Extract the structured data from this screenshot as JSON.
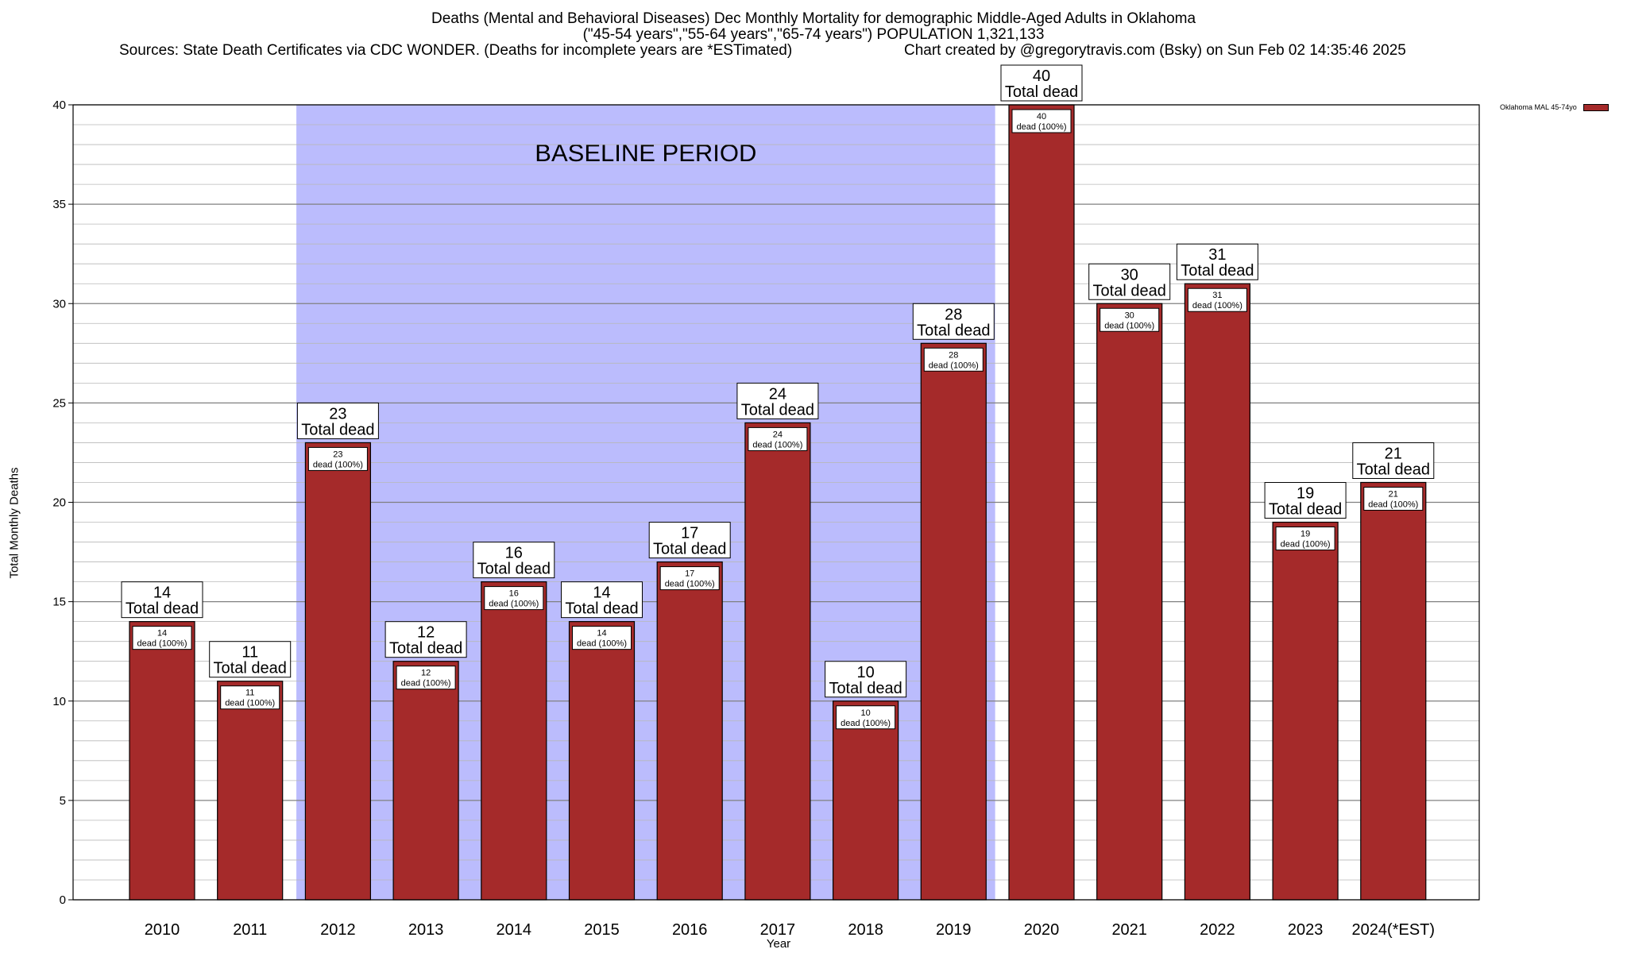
{
  "title": {
    "line1": "Deaths (Mental and Behavioral Diseases) Dec Monthly Mortality for demographic Middle-Aged Adults in Oklahoma",
    "line2": "(\"45-54 years\",\"55-64 years\",\"65-74 years\") POPULATION 1,321,133",
    "source": "Sources: State Death Certificates via CDC WONDER. (Deaths for incomplete years are *ESTimated)",
    "credit": "Chart created by @gregorytravis.com (Bsky) on Sun Feb 02 14:35:46 2025"
  },
  "chart_data": {
    "type": "bar",
    "categories": [
      "2010",
      "2011",
      "2012",
      "2013",
      "2014",
      "2015",
      "2016",
      "2017",
      "2018",
      "2019",
      "2020",
      "2021",
      "2022",
      "2023",
      "2024(*EST)"
    ],
    "series": [
      {
        "name": "Oklahoma MAL 45-74yo",
        "values": [
          14,
          11,
          23,
          12,
          16,
          14,
          17,
          24,
          10,
          28,
          40,
          30,
          31,
          19,
          21
        ]
      }
    ],
    "xlabel": "Year",
    "ylabel": "Total Monthly Deaths",
    "ylim": [
      0,
      40
    ],
    "yticks": [
      0,
      5,
      10,
      15,
      20,
      25,
      30,
      35,
      40
    ],
    "grid": true,
    "legend_position": "top-right",
    "bar_label_text": "Total dead",
    "inner_label_text": "dead (100%)",
    "baseline": {
      "label": "BASELINE PERIOD",
      "from": "2012",
      "to": "2019"
    },
    "colors": {
      "bar": "#a52a2a",
      "baseline_fill": "#bbbcfd",
      "grid": "#a0a0a0"
    }
  }
}
